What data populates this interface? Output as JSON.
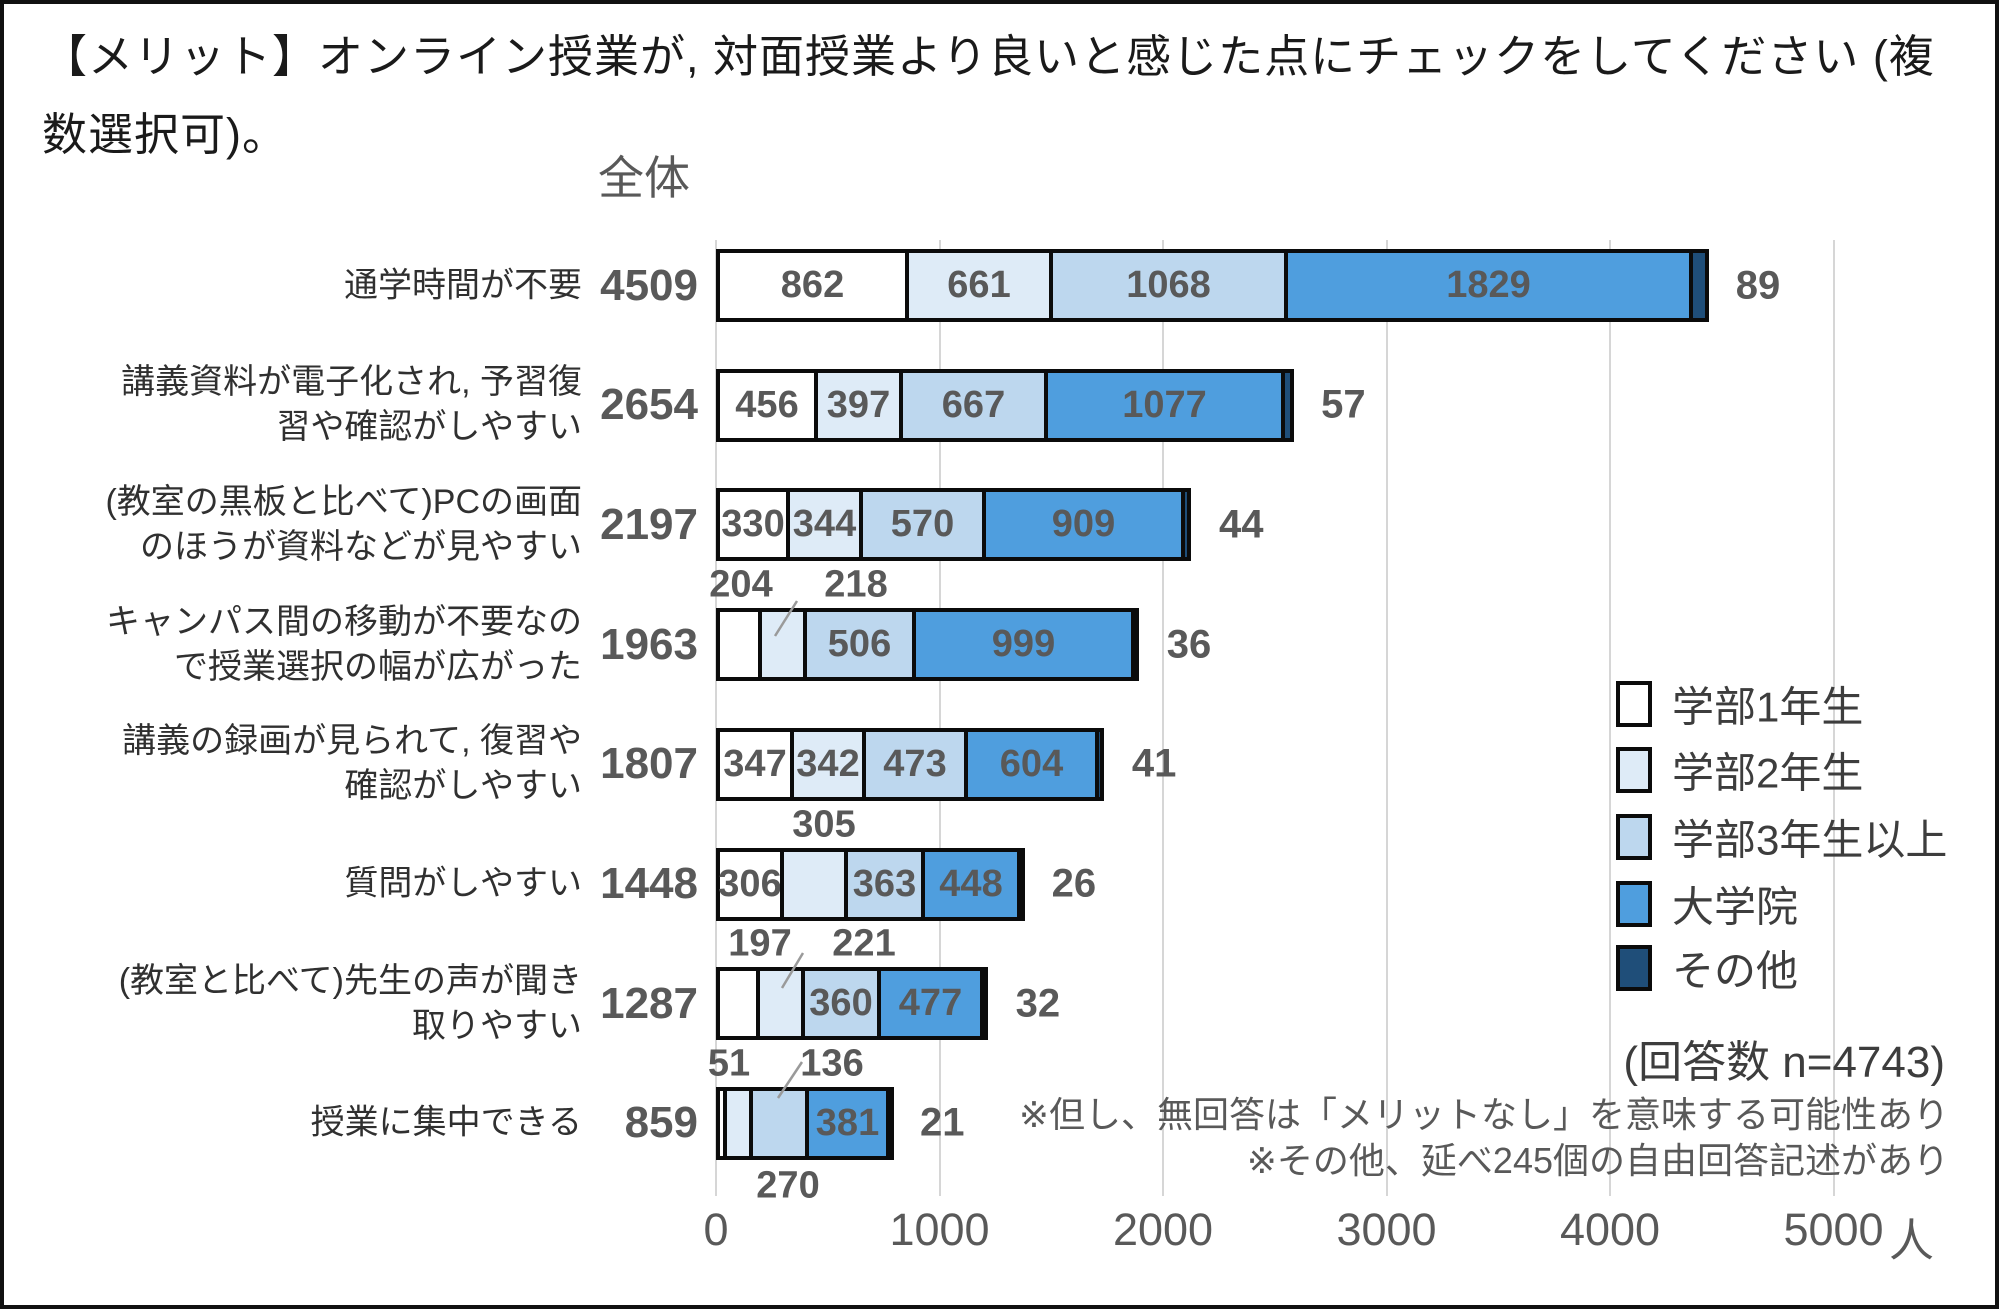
{
  "title": "【メリット】オンライン授業が, 対面授業より良いと感じた点にチェックをしてください (複数選択可)。",
  "header": {
    "column_label": "全体"
  },
  "chart_data": {
    "type": "bar",
    "stacked": true,
    "orientation": "horizontal",
    "unit": "人",
    "x_ticks": [
      0,
      1000,
      2000,
      3000,
      4000,
      5000
    ],
    "xlim": [
      0,
      5000
    ],
    "grid": true,
    "series_names": [
      "学部1年生",
      "学部2年生",
      "学部3年生以上",
      "大学院",
      "その他"
    ],
    "series_colors": [
      "#FFFFFF",
      "#DEEBF7",
      "#BDD7EE",
      "#4F9EDE",
      "#1F4E79"
    ],
    "rows": [
      {
        "label": "通学時間が不要",
        "total": 4509,
        "values": [
          862,
          661,
          1068,
          1829,
          89
        ],
        "placement": [
          "in",
          "in",
          "in",
          "in",
          "right"
        ]
      },
      {
        "label": "講義資料が電子化され, 予習復\n習や確認がしやすい",
        "total": 2654,
        "values": [
          456,
          397,
          667,
          1077,
          57
        ],
        "placement": [
          "in",
          "in",
          "in",
          "in",
          "right"
        ]
      },
      {
        "label": "(教室の黒板と比べて)PCの画面\nのほうが資料などが見やすい",
        "total": 2197,
        "values": [
          330,
          344,
          570,
          909,
          44
        ],
        "placement": [
          "in",
          "in",
          "in",
          "in",
          "right"
        ]
      },
      {
        "label": "キャンパス間の移動が不要なの\nで授業選択の幅が広がった",
        "total": 1963,
        "values": [
          204,
          218,
          506,
          999,
          36
        ],
        "placement": [
          "above@737",
          "above@852",
          "in",
          "in",
          "right"
        ]
      },
      {
        "label": "講義の録画が見られて, 復習や\n確認がしやすい",
        "total": 1807,
        "values": [
          347,
          342,
          473,
          604,
          41
        ],
        "placement": [
          "in",
          "in",
          "in",
          "in",
          "right"
        ]
      },
      {
        "label": "質問がしやすい",
        "total": 1448,
        "values": [
          306,
          305,
          363,
          448,
          26
        ],
        "placement": [
          "in",
          "above@820",
          "in",
          "in",
          "right"
        ]
      },
      {
        "label": "(教室と比べて)先生の声が聞き\n取りやすい",
        "total": 1287,
        "values": [
          197,
          221,
          360,
          477,
          32
        ],
        "placement": [
          "above@756",
          "above@860",
          "in",
          "in",
          "right"
        ]
      },
      {
        "label": "授業に集中できる",
        "total": 859,
        "values": [
          51,
          136,
          270,
          381,
          21
        ],
        "placement": [
          "above@725",
          "above@828",
          "below@784",
          "in",
          "right"
        ]
      }
    ]
  },
  "legend": {
    "note_n": "(回答数 n=4743)"
  },
  "annotations": {
    "note1": "※但し、無回答は「メリットなし」を意味する可能性あり",
    "note2": "※その他、延べ245個の自由回答記述があり"
  }
}
